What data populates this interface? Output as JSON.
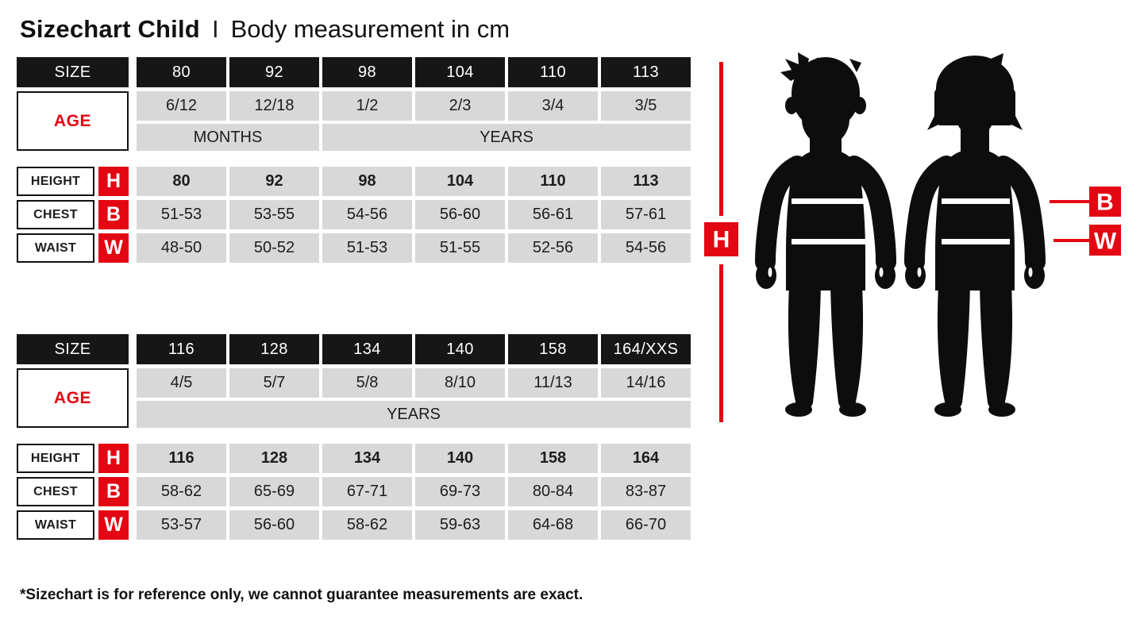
{
  "header": {
    "title": "Sizechart Child",
    "separator": "I",
    "subtitle": "Body measurement in cm"
  },
  "footnote": "*Sizechart is for reference only, we cannot guarantee measurements are exact.",
  "labels": {
    "size": "SIZE",
    "age": "AGE",
    "height": "HEIGHT",
    "chest": "CHEST",
    "waist": "WAIST"
  },
  "colors": {
    "red": "#e30613",
    "header_black": "#161616",
    "cell_gray": "#d8d8d8"
  },
  "tables": [
    {
      "sizes": [
        "80",
        "92",
        "98",
        "104",
        "110",
        "113"
      ],
      "ages": [
        "6/12",
        "12/18",
        "1/2",
        "2/3",
        "3/4",
        "3/5"
      ],
      "age_units": [
        {
          "label": "MONTHS",
          "start": 0,
          "span": 2
        },
        {
          "label": "YEARS",
          "start": 2,
          "span": 4
        }
      ],
      "measurements": [
        {
          "key": "height",
          "label": "HEIGHT",
          "letter": "H",
          "bold": true,
          "values": [
            "80",
            "92",
            "98",
            "104",
            "110",
            "113"
          ]
        },
        {
          "key": "chest",
          "label": "CHEST",
          "letter": "B",
          "bold": false,
          "values": [
            "51-53",
            "53-55",
            "54-56",
            "56-60",
            "56-61",
            "57-61"
          ]
        },
        {
          "key": "waist",
          "label": "WAIST",
          "letter": "W",
          "bold": false,
          "values": [
            "48-50",
            "50-52",
            "51-53",
            "51-55",
            "52-56",
            "54-56"
          ]
        }
      ]
    },
    {
      "sizes": [
        "116",
        "128",
        "134",
        "140",
        "158",
        "164/XXS"
      ],
      "ages": [
        "4/5",
        "5/7",
        "5/8",
        "8/10",
        "11/13",
        "14/16"
      ],
      "age_units": [
        {
          "label": "YEARS",
          "start": 0,
          "span": 6
        }
      ],
      "measurements": [
        {
          "key": "height",
          "label": "HEIGHT",
          "letter": "H",
          "bold": true,
          "values": [
            "116",
            "128",
            "134",
            "140",
            "158",
            "164"
          ]
        },
        {
          "key": "chest",
          "label": "CHEST",
          "letter": "B",
          "bold": false,
          "values": [
            "58-62",
            "65-69",
            "67-71",
            "69-73",
            "80-84",
            "83-87"
          ]
        },
        {
          "key": "waist",
          "label": "WAIST",
          "letter": "W",
          "bold": false,
          "values": [
            "53-57",
            "56-60",
            "58-62",
            "59-63",
            "64-68",
            "66-70"
          ]
        }
      ]
    }
  ],
  "diagram": {
    "height_letter": "H",
    "chest_letter": "B",
    "waist_letter": "W"
  }
}
